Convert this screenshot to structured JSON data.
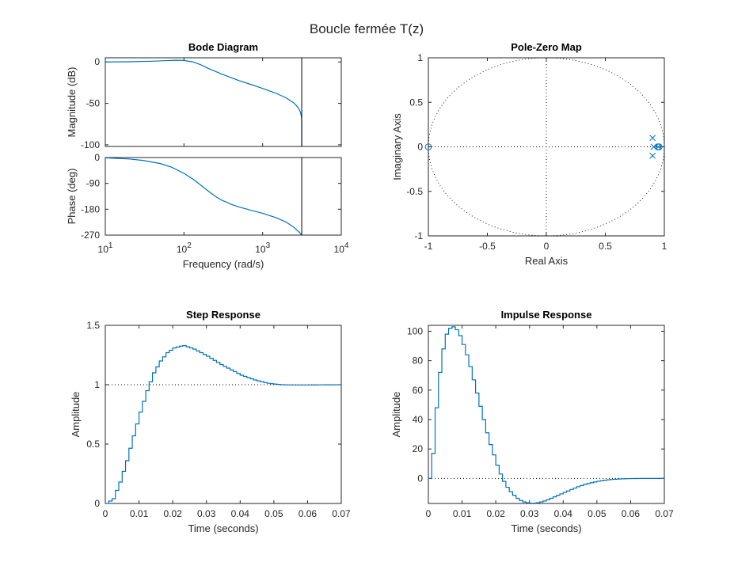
{
  "figure": {
    "suptitle": "Boucle fermée T(z)",
    "colors": {
      "series": "#0072BD",
      "axes": "#262626",
      "reference": "#000000"
    }
  },
  "chart_data": [
    {
      "type": "line",
      "title": "Bode Diagram",
      "panel": "magnitude",
      "xlabel": "Frequency  (rad/s)",
      "ylabel": "Magnitude (dB)",
      "xscale": "log",
      "xlim": [
        10,
        10000
      ],
      "ylim": [
        -102,
        5
      ],
      "yticks": [
        0,
        -50,
        -100
      ],
      "ytick_labels": [
        "0",
        "-50",
        "-100"
      ],
      "nyquist_line": 3142,
      "series": [
        {
          "x": [
            10,
            20,
            40,
            60,
            80,
            100,
            130,
            160,
            200,
            300,
            500,
            700,
            1000,
            1500,
            2000,
            2500,
            2800,
            3000,
            3100,
            3142
          ],
          "y": [
            0.0,
            0.2,
            0.9,
            1.6,
            2.0,
            1.8,
            0.0,
            -3.0,
            -7.5,
            -14.5,
            -22.5,
            -27.0,
            -32.0,
            -38.0,
            -43.5,
            -49.5,
            -54.5,
            -59.5,
            -65.0,
            -70.0
          ]
        }
      ]
    },
    {
      "type": "line",
      "title": "",
      "panel": "phase",
      "xlabel": "Frequency  (rad/s)",
      "ylabel": "Phase (deg)",
      "xscale": "log",
      "xlim": [
        10,
        10000
      ],
      "ylim": [
        -270,
        0
      ],
      "xtick_labels": [
        "10^1",
        "10^2",
        "10^3",
        "10^4"
      ],
      "yticks": [
        0,
        -90,
        -180,
        -270
      ],
      "ytick_labels": [
        "0",
        "-90",
        "-180",
        "-270"
      ],
      "nyquist_line": 3142,
      "series": [
        {
          "x": [
            10,
            20,
            30,
            50,
            70,
            100,
            130,
            160,
            200,
            250,
            300,
            400,
            500,
            700,
            1000,
            1500,
            2000,
            2500,
            3000,
            3142
          ],
          "y": [
            -1,
            -5,
            -10,
            -21,
            -34,
            -55,
            -75,
            -94,
            -115,
            -135,
            -148,
            -163,
            -172,
            -183,
            -194,
            -210,
            -225,
            -243,
            -263,
            -270
          ]
        }
      ]
    },
    {
      "type": "scatter",
      "title": "Pole-Zero Map",
      "xlabel": "Real Axis",
      "ylabel": "Imaginary Axis",
      "xlim": [
        -1,
        1
      ],
      "ylim": [
        -1,
        1
      ],
      "xticks": [
        -1,
        -0.5,
        0,
        0.5,
        1
      ],
      "xtick_labels": [
        "-1",
        "-0.5",
        "0",
        "0.5",
        "1"
      ],
      "yticks": [
        1,
        0.5,
        0,
        -0.5,
        -1
      ],
      "ytick_labels": [
        "1",
        "0.5",
        "0",
        "-0.5",
        "-1"
      ],
      "unit_circle": true,
      "poles": [
        [
          0.9,
          0.1
        ],
        [
          0.9,
          -0.1
        ],
        [
          0.91,
          0
        ],
        [
          0.95,
          0
        ]
      ],
      "zeros": [
        [
          -1.0,
          0
        ],
        [
          0.945,
          0
        ],
        [
          0.955,
          0
        ]
      ]
    },
    {
      "type": "line",
      "title": "Step Response",
      "xlabel": "Time (seconds)",
      "ylabel": "Amplitude",
      "xlim": [
        0,
        0.07
      ],
      "ylim": [
        0,
        1.5
      ],
      "xticks": [
        0,
        0.01,
        0.02,
        0.03,
        0.04,
        0.05,
        0.06,
        0.07
      ],
      "xtick_labels": [
        "0",
        "0.01",
        "0.02",
        "0.03",
        "0.04",
        "0.05",
        "0.06",
        "0.07"
      ],
      "yticks": [
        0,
        0.5,
        1,
        1.5
      ],
      "ytick_labels": [
        "0",
        "0.5",
        "1",
        "1.5"
      ],
      "reference_line": 1,
      "sample_time": 0.001,
      "series": [
        {
          "x": [
            0,
            0.002,
            0.004,
            0.006,
            0.008,
            0.01,
            0.012,
            0.014,
            0.016,
            0.018,
            0.02,
            0.022,
            0.023,
            0.024,
            0.026,
            0.028,
            0.03,
            0.032,
            0.034,
            0.036,
            0.038,
            0.04,
            0.042,
            0.044,
            0.046,
            0.048,
            0.05,
            0.052,
            0.055,
            0.06,
            0.065,
            0.07
          ],
          "y": [
            0.0,
            0.04,
            0.18,
            0.36,
            0.57,
            0.77,
            0.95,
            1.1,
            1.2,
            1.27,
            1.31,
            1.325,
            1.33,
            1.32,
            1.3,
            1.27,
            1.24,
            1.205,
            1.17,
            1.14,
            1.11,
            1.08,
            1.06,
            1.04,
            1.025,
            1.012,
            1.005,
            1.0,
            0.998,
            0.998,
            0.999,
            1.0
          ]
        }
      ]
    },
    {
      "type": "line",
      "title": "Impulse Response",
      "xlabel": "Time (seconds)",
      "ylabel": "Amplitude",
      "xlim": [
        0,
        0.07
      ],
      "ylim": [
        -17,
        104
      ],
      "xticks": [
        0,
        0.01,
        0.02,
        0.03,
        0.04,
        0.05,
        0.06,
        0.07
      ],
      "xtick_labels": [
        "0",
        "0.01",
        "0.02",
        "0.03",
        "0.04",
        "0.05",
        "0.06",
        "0.07"
      ],
      "yticks": [
        0,
        20,
        40,
        60,
        80,
        100
      ],
      "ytick_labels": [
        "0",
        "20",
        "40",
        "60",
        "80",
        "100"
      ],
      "reference_line": 0,
      "sample_time": 0.001,
      "series": [
        {
          "x": [
            0,
            0.001,
            0.002,
            0.003,
            0.004,
            0.005,
            0.006,
            0.007,
            0.008,
            0.009,
            0.01,
            0.011,
            0.012,
            0.013,
            0.014,
            0.015,
            0.016,
            0.017,
            0.018,
            0.019,
            0.02,
            0.021,
            0.022,
            0.023,
            0.024,
            0.025,
            0.026,
            0.027,
            0.028,
            0.029,
            0.03,
            0.031,
            0.032,
            0.033,
            0.034,
            0.035,
            0.036,
            0.038,
            0.04,
            0.042,
            0.044,
            0.046,
            0.048,
            0.05,
            0.052,
            0.054,
            0.056,
            0.058,
            0.06,
            0.063,
            0.066,
            0.07
          ],
          "y": [
            0,
            17,
            48,
            72,
            88,
            98,
            102,
            103,
            101,
            97,
            91,
            84,
            76,
            67,
            58,
            49,
            40,
            31,
            23,
            16,
            9,
            3,
            -2,
            -6,
            -9,
            -11.5,
            -13.5,
            -15,
            -16,
            -16.5,
            -16.8,
            -16.8,
            -16.5,
            -16,
            -15.3,
            -14.5,
            -13.5,
            -11.5,
            -9.5,
            -7.5,
            -5.6,
            -4.1,
            -2.9,
            -1.9,
            -1.2,
            -0.7,
            -0.4,
            -0.2,
            -0.1,
            0,
            0,
            0
          ]
        }
      ]
    }
  ]
}
